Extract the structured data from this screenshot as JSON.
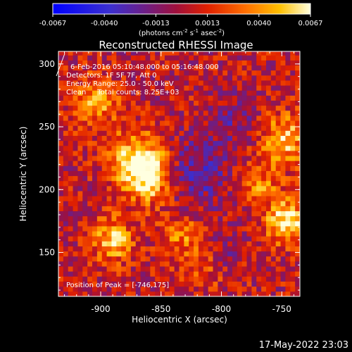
{
  "window": {
    "timestamp": "17-May-2022 23:03"
  },
  "colorbar": {
    "ticks": [
      "-0.0067",
      "-0.0040",
      "-0.0013",
      "0.0013",
      "0.0040",
      "0.0067"
    ],
    "unit_label_main": "(photons cm",
    "unit_sup1": "-2",
    "unit_mid": " s",
    "unit_sup2": "-1",
    "unit_end": " asec",
    "unit_sup3": "-2",
    "unit_close": ")",
    "range": [
      -0.0067,
      0.0067
    ]
  },
  "info": {
    "line1": "6-Feb-2016 05:10:48.000 to 05:16:48.000",
    "line2": "Detectors: 1F 5F 7F, Att 0",
    "line3": "Energy Range: 25.0 - 50.0 keV",
    "line4": "Clean     Total counts: 8.25E+03",
    "peak": "Position of Peak = [-746,175]"
  },
  "colors": {
    "background": "#000000",
    "text": "#ffffff",
    "cmap": [
      "#0000ff",
      "#3b2fd0",
      "#5a1fa0",
      "#6a1f8a",
      "#a0103c",
      "#d0200a",
      "#ff6000",
      "#ffb000",
      "#ffff60",
      "#ffffff"
    ]
  },
  "chart_data": {
    "type": "heatmap",
    "title": "Reconstructed RHESSI Image",
    "xlabel": "Heliocentric X (arcsec)",
    "ylabel": "Heliocentric Y (arcsec)",
    "xlim": [
      -935,
      -735
    ],
    "ylim": [
      115,
      310
    ],
    "xticks": [
      -900,
      -850,
      -800,
      -750
    ],
    "yticks": [
      150,
      200,
      250,
      300
    ],
    "xtick_labels": [
      "-900",
      "-850",
      "-800",
      "-750"
    ],
    "ytick_labels": [
      "150",
      "200",
      "250",
      "300"
    ],
    "grid": false,
    "pixel_size_arcsec": 4,
    "sources": [
      {
        "x": -870,
        "y": 225,
        "sigma": 16,
        "amp": 0.0048
      },
      {
        "x": -860,
        "y": 210,
        "sigma": 14,
        "amp": 0.0055
      },
      {
        "x": -890,
        "y": 160,
        "sigma": 12,
        "amp": 0.0052
      },
      {
        "x": -905,
        "y": 270,
        "sigma": 14,
        "amp": 0.004
      },
      {
        "x": -748,
        "y": 240,
        "sigma": 14,
        "amp": 0.0048
      },
      {
        "x": -746,
        "y": 175,
        "sigma": 12,
        "amp": 0.0062
      },
      {
        "x": -770,
        "y": 205,
        "sigma": 12,
        "amp": 0.0032
      },
      {
        "x": -835,
        "y": 165,
        "sigma": 12,
        "amp": 0.003
      },
      {
        "x": -815,
        "y": 140,
        "sigma": 14,
        "amp": 0.0022
      }
    ],
    "negative_regions": [
      {
        "x": -820,
        "y": 215,
        "sigma": 20,
        "amp": -0.003
      },
      {
        "x": -790,
        "y": 255,
        "sigma": 14,
        "amp": -0.0018
      },
      {
        "x": -800,
        "y": 150,
        "sigma": 10,
        "amp": -0.002
      }
    ],
    "peak_position": [
      -746,
      175
    ]
  }
}
